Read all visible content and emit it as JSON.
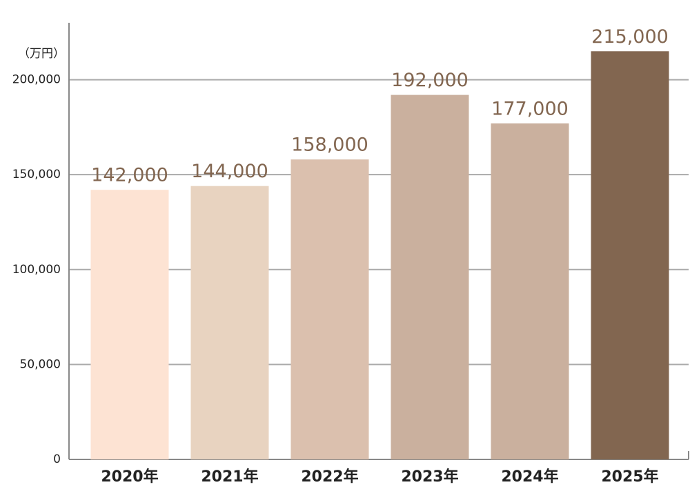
{
  "chart_data": {
    "type": "bar",
    "unit_label": "（万円）",
    "categories": [
      "2020年",
      "2021年",
      "2022年",
      "2023年",
      "2024年",
      "2025年"
    ],
    "values": [
      142000,
      144000,
      158000,
      192000,
      177000,
      215000
    ],
    "value_labels": [
      "142,000",
      "144,000",
      "158,000",
      "192,000",
      "177,000",
      "215,000"
    ],
    "colors": [
      "#fde3d3",
      "#e8d3c0",
      "#dbc0ae",
      "#cab09e",
      "#cab09e",
      "#826650"
    ],
    "label_color": "#826650",
    "ylim": [
      0,
      230000
    ],
    "yticks": [
      0,
      {
        "value": 50000,
        "label": "50,000"
      },
      {
        "value": 100000,
        "label": "100,000"
      },
      {
        "value": 150000,
        "label": "150,000"
      },
      {
        "value": 200000,
        "label": "200,000"
      }
    ],
    "grid": true
  }
}
